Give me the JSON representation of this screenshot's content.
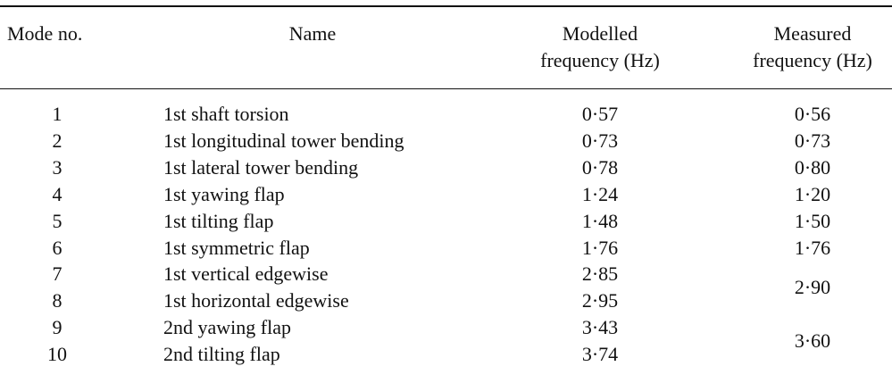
{
  "table": {
    "header": [
      "Mode no.",
      "Name",
      [
        "Modelled",
        "frequency (Hz)"
      ],
      [
        "Measured",
        "frequency (Hz)"
      ]
    ],
    "rows": [
      [
        "1",
        "1st shaft torsion",
        "0·57",
        "0·56"
      ],
      [
        "2",
        "1st longitudinal tower bending",
        "0·73",
        "0·73"
      ],
      [
        "3",
        "1st lateral tower bending",
        "0·78",
        "0·80"
      ],
      [
        "4",
        "1st yawing flap",
        "1·24",
        "1·20"
      ],
      [
        "5",
        "1st tilting flap",
        "1·48",
        "1·50"
      ],
      [
        "6",
        "1st symmetric flap",
        "1·76",
        "1·76"
      ],
      [
        "7",
        "1st vertical edgewise",
        "2·85",
        "2·90"
      ],
      [
        "8",
        "1st horizontal edgewise",
        "2·95",
        null
      ],
      [
        "9",
        "2nd yawing flap",
        "3·43",
        "3·60"
      ],
      [
        "10",
        "2nd tilting flap",
        "3·74",
        null
      ]
    ]
  }
}
